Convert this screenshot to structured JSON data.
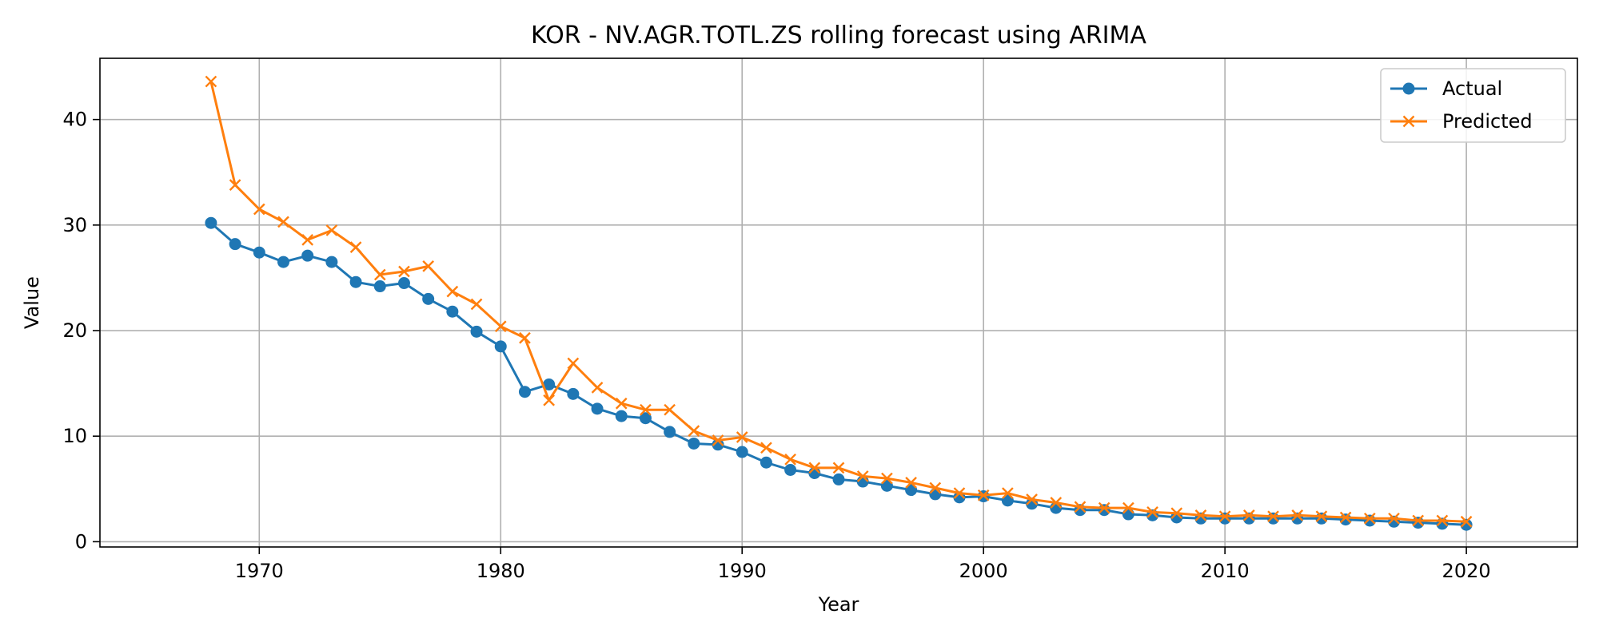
{
  "chart_data": {
    "type": "line",
    "title": "KOR - NV.AGR.TOTL.ZS rolling forecast using ARIMA",
    "xlabel": "Year",
    "ylabel": "Value",
    "xlim": [
      1963.4,
      2024.6
    ],
    "ylim": [
      -0.5,
      45.8
    ],
    "x_ticks": [
      1970,
      1980,
      1990,
      2000,
      2010,
      2020
    ],
    "y_ticks": [
      0,
      10,
      20,
      30,
      40
    ],
    "grid": true,
    "legend_position": "top-right",
    "x": [
      1968,
      1969,
      1970,
      1971,
      1972,
      1973,
      1974,
      1975,
      1976,
      1977,
      1978,
      1979,
      1980,
      1981,
      1982,
      1983,
      1984,
      1985,
      1986,
      1987,
      1988,
      1989,
      1990,
      1991,
      1992,
      1993,
      1994,
      1995,
      1996,
      1997,
      1998,
      1999,
      2000,
      2001,
      2002,
      2003,
      2004,
      2005,
      2006,
      2007,
      2008,
      2009,
      2010,
      2011,
      2012,
      2013,
      2014,
      2015,
      2016,
      2017,
      2018,
      2019,
      2020
    ],
    "series": [
      {
        "name": "Actual",
        "color": "#1f77b4",
        "marker": "circle",
        "values": [
          30.2,
          28.2,
          27.4,
          26.5,
          27.1,
          26.5,
          24.6,
          24.2,
          24.5,
          23.0,
          21.8,
          19.9,
          18.5,
          14.2,
          14.9,
          14.0,
          12.6,
          11.9,
          11.7,
          10.4,
          9.3,
          9.2,
          8.5,
          7.5,
          6.8,
          6.5,
          5.9,
          5.7,
          5.3,
          4.9,
          4.5,
          4.2,
          4.3,
          3.9,
          3.6,
          3.2,
          3.0,
          3.0,
          2.6,
          2.5,
          2.3,
          2.2,
          2.2,
          2.2,
          2.2,
          2.2,
          2.2,
          2.1,
          2.0,
          1.9,
          1.8,
          1.7,
          1.6
        ]
      },
      {
        "name": "Predicted",
        "color": "#ff7f0e",
        "marker": "x",
        "values": [
          43.6,
          33.8,
          31.5,
          30.3,
          28.6,
          29.5,
          27.9,
          25.3,
          25.6,
          26.1,
          23.7,
          22.5,
          20.4,
          19.3,
          13.4,
          16.9,
          14.6,
          13.1,
          12.5,
          12.5,
          10.5,
          9.6,
          9.9,
          8.9,
          7.8,
          7.0,
          7.0,
          6.2,
          6.0,
          5.6,
          5.1,
          4.6,
          4.4,
          4.6,
          4.0,
          3.7,
          3.3,
          3.2,
          3.2,
          2.8,
          2.7,
          2.5,
          2.4,
          2.5,
          2.4,
          2.5,
          2.4,
          2.3,
          2.2,
          2.2,
          2.0,
          2.0,
          1.9
        ]
      }
    ]
  }
}
